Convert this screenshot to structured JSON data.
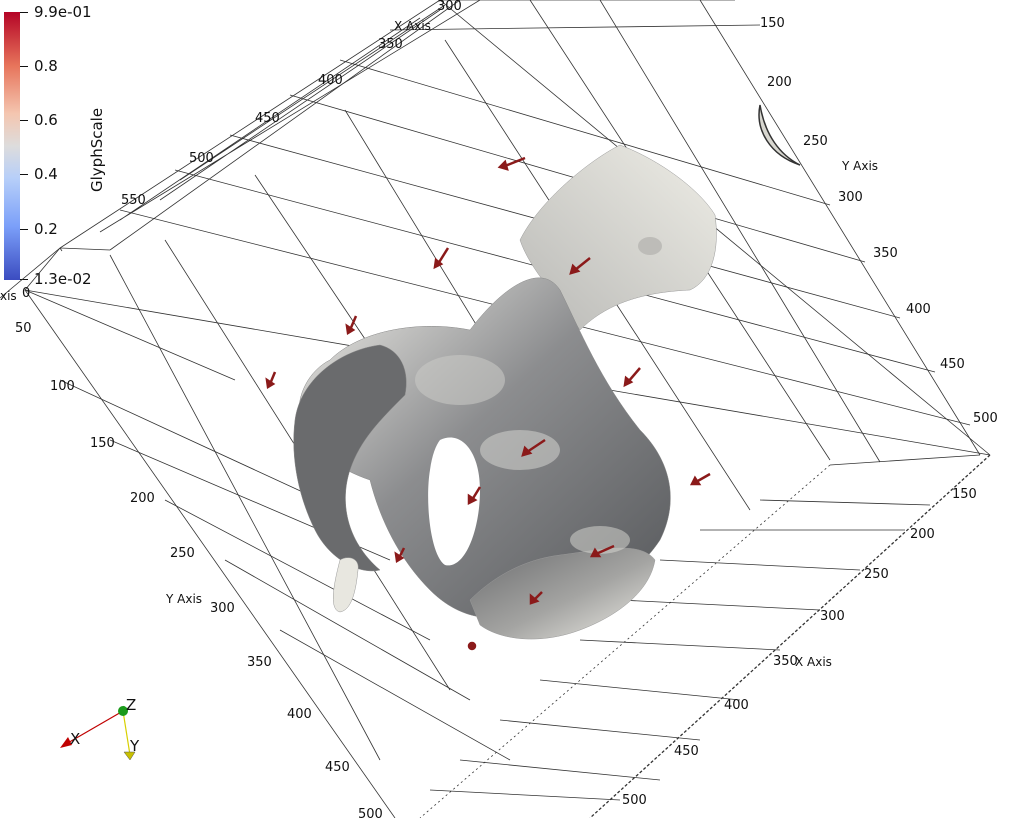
{
  "colorbar": {
    "title": "GlyphScale",
    "labels": [
      "9.9e-01",
      "0.8",
      "0.6",
      "0.4",
      "0.2",
      "1.3e-02"
    ],
    "colors": [
      "#b40426",
      "#dddcdc",
      "#3b4cc0"
    ]
  },
  "axes": {
    "x_axis_title": "X Axis",
    "y_axis_title": "Y Axis",
    "x_top_ticks": [
      "300",
      "350",
      "400",
      "450",
      "500",
      "550"
    ],
    "y_right_ticks": [
      "150",
      "200",
      "250",
      "300",
      "350",
      "400",
      "450",
      "500"
    ],
    "left_ticks": [
      "50",
      "100",
      "150",
      "200",
      "250",
      "300",
      "350",
      "400",
      "450",
      "500"
    ],
    "bottom_right_ticks": [
      "150",
      "200",
      "250",
      "300",
      "350",
      "400",
      "450",
      "500"
    ],
    "partial_label_left": "xis",
    "partial_tick_zero": "0"
  },
  "orientation": {
    "x": "X",
    "y": "Y",
    "z": "Z",
    "x_color": "#c00000",
    "y_color": "#d8d000",
    "z_color": "#1a9a1a"
  },
  "surface_color": "#5f6062",
  "glyph_color": "#8b1a1a"
}
